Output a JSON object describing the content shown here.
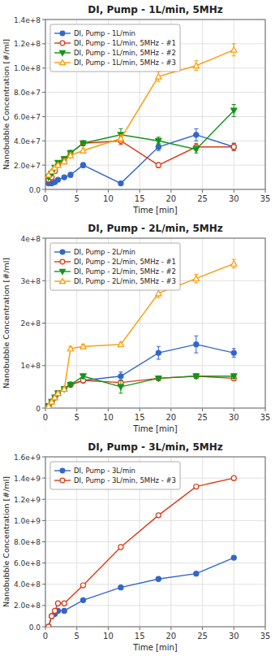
{
  "chart_data": [
    {
      "type": "line",
      "title": "DI, Pump - 1L/min, 5MHz",
      "xlabel": "Time [min]",
      "ylabel": "Nanobubble Concentration [#/ml]",
      "xlim": [
        0,
        35
      ],
      "xticks": [
        0,
        5,
        10,
        15,
        20,
        25,
        30,
        35
      ],
      "ylim": [
        0,
        140000000
      ],
      "yticks": [
        {
          "value": 0,
          "label": "0.0"
        },
        {
          "value": 20000000,
          "label": "2.0e+7"
        },
        {
          "value": 40000000,
          "label": "4.0e+7"
        },
        {
          "value": 60000000,
          "label": "6.0e+7"
        },
        {
          "value": 80000000,
          "label": "8.0e+7"
        },
        {
          "value": 100000000,
          "label": "1.0e+8"
        },
        {
          "value": 120000000,
          "label": "1.2e+8"
        },
        {
          "value": 140000000,
          "label": "1.4e+8"
        }
      ],
      "grid": true,
      "legend": "upper left",
      "series": [
        {
          "name": "DI, Pump - 1L/min",
          "marker": "circle",
          "x": [
            0.5,
            1,
            1.5,
            2,
            3,
            4,
            6,
            12,
            18,
            24,
            30
          ],
          "values": [
            5000000,
            5000000,
            6000000,
            8000000,
            10000000,
            12000000,
            20000000,
            5000000,
            35000000,
            45000000,
            35000000
          ],
          "errors": [
            1000000,
            1000000,
            1000000,
            1000000,
            1000000,
            2000000,
            2000000,
            1000000,
            3000000,
            5000000,
            3000000
          ]
        },
        {
          "name": "DI, Pump - 1L/min, 5MHz - #1",
          "marker": "circle-open",
          "x": [
            0.5,
            1,
            1.5,
            2,
            3,
            4,
            6,
            12,
            18,
            24,
            30
          ],
          "values": [
            8000000,
            10000000,
            15000000,
            20000000,
            25000000,
            30000000,
            38000000,
            40000000,
            20000000,
            35000000,
            35000000
          ],
          "errors": [
            1000000,
            1000000,
            1000000,
            1000000,
            2000000,
            2000000,
            2000000,
            3000000,
            2000000,
            3000000,
            3000000
          ]
        },
        {
          "name": "DI, Pump - 1L/min, 5MHz - #2",
          "marker": "triangle-down",
          "x": [
            0.5,
            1,
            1.5,
            2,
            3,
            4,
            6,
            12,
            18,
            24,
            30
          ],
          "values": [
            10000000,
            13000000,
            18000000,
            22000000,
            25000000,
            30000000,
            38000000,
            45000000,
            40000000,
            33000000,
            65000000
          ],
          "errors": [
            1000000,
            1000000,
            1000000,
            1000000,
            2000000,
            2000000,
            2000000,
            5000000,
            3000000,
            3000000,
            5000000
          ]
        },
        {
          "name": "DI, Pump - 1L/min, 5MHz - #3",
          "marker": "triangle-up-open",
          "x": [
            0.5,
            1,
            1.5,
            2,
            3,
            4,
            6,
            12,
            18,
            24,
            30
          ],
          "values": [
            12000000,
            15000000,
            18000000,
            20000000,
            23000000,
            28000000,
            32000000,
            42000000,
            93000000,
            102000000,
            115000000
          ],
          "errors": [
            1000000,
            1000000,
            1000000,
            1000000,
            2000000,
            2000000,
            2000000,
            3000000,
            4000000,
            4000000,
            5000000
          ]
        }
      ]
    },
    {
      "type": "line",
      "title": "DI, Pump - 2L/min, 5MHz",
      "xlabel": "Time [min]",
      "ylabel": "Nanobubble Concentration [#/ml]",
      "xlim": [
        0,
        35
      ],
      "xticks": [
        0,
        5,
        10,
        15,
        20,
        25,
        30,
        35
      ],
      "ylim": [
        0,
        400000000
      ],
      "yticks": [
        0,
        {
          "value": 100000000,
          "label": "1e+8"
        },
        {
          "value": 200000000,
          "label": "2e+8"
        },
        {
          "value": 300000000,
          "label": "3e+8"
        },
        {
          "value": 400000000,
          "label": "4e+8"
        }
      ],
      "grid": true,
      "legend": "upper left",
      "series": [
        {
          "name": "DI, Pump - 2L/min",
          "marker": "circle",
          "x": [
            0.5,
            1,
            1.5,
            2,
            3,
            4,
            6,
            12,
            18,
            24,
            30
          ],
          "values": [
            5000000,
            15000000,
            25000000,
            35000000,
            45000000,
            55000000,
            65000000,
            75000000,
            130000000,
            150000000,
            130000000
          ],
          "errors": [
            1000000,
            2000000,
            2000000,
            3000000,
            3000000,
            4000000,
            5000000,
            10000000,
            15000000,
            20000000,
            10000000
          ]
        },
        {
          "name": "DI, Pump - 2L/min, 5MHz - #1",
          "marker": "circle-open",
          "x": [
            0.5,
            1,
            1.5,
            2,
            3,
            4,
            6,
            12,
            18,
            24,
            30
          ],
          "values": [
            5000000,
            15000000,
            25000000,
            35000000,
            45000000,
            55000000,
            65000000,
            60000000,
            70000000,
            75000000,
            70000000
          ],
          "errors": [
            1000000,
            2000000,
            2000000,
            3000000,
            3000000,
            4000000,
            5000000,
            5000000,
            5000000,
            5000000,
            5000000
          ]
        },
        {
          "name": "DI, Pump - 2L/min, 5MHz - #2",
          "marker": "triangle-down",
          "x": [
            0.5,
            1,
            1.5,
            2,
            3,
            4,
            6,
            12,
            18,
            24,
            30
          ],
          "values": [
            5000000,
            15000000,
            25000000,
            35000000,
            45000000,
            55000000,
            75000000,
            50000000,
            70000000,
            75000000,
            75000000
          ],
          "errors": [
            1000000,
            2000000,
            2000000,
            3000000,
            3000000,
            4000000,
            5000000,
            15000000,
            5000000,
            5000000,
            5000000
          ]
        },
        {
          "name": "DI, Pump - 2L/min, 5MHz - #3",
          "marker": "triangle-up-open",
          "x": [
            0.5,
            1,
            1.5,
            2,
            3,
            4,
            6,
            12,
            18,
            24,
            30
          ],
          "values": [
            5000000,
            15000000,
            25000000,
            35000000,
            45000000,
            140000000,
            145000000,
            150000000,
            270000000,
            305000000,
            340000000
          ],
          "errors": [
            1000000,
            2000000,
            2000000,
            3000000,
            3000000,
            5000000,
            5000000,
            5000000,
            10000000,
            10000000,
            10000000
          ]
        }
      ]
    },
    {
      "type": "line",
      "title": "DI, Pump - 3L/min, 5MHz",
      "xlabel": "Time [min]",
      "ylabel": "Nanobubble Concentration [#/ml]",
      "xlim": [
        0,
        35
      ],
      "xticks": [
        0,
        5,
        10,
        15,
        20,
        25,
        30,
        35
      ],
      "ylim": [
        0,
        1600000000
      ],
      "yticks": [
        {
          "value": 0,
          "label": "0.0"
        },
        {
          "value": 200000000,
          "label": "2.0e+8"
        },
        {
          "value": 400000000,
          "label": "4.0e+8"
        },
        {
          "value": 600000000,
          "label": "6.0e+8"
        },
        {
          "value": 800000000,
          "label": "8.0e+8"
        },
        {
          "value": 1000000000,
          "label": "1.0e+9"
        },
        {
          "value": 1200000000,
          "label": "1.2e+9"
        },
        {
          "value": 1400000000,
          "label": "1.4e+9"
        },
        {
          "value": 1600000000,
          "label": "1.6e+9"
        }
      ],
      "grid": true,
      "legend": "upper left",
      "series": [
        {
          "name": "DI, Pump - 3L/min",
          "marker": "circle",
          "x": [
            0.5,
            1,
            1.5,
            2,
            3,
            6,
            12,
            18,
            24,
            30
          ],
          "values": [
            0,
            100000000,
            120000000,
            150000000,
            150000000,
            250000000,
            370000000,
            450000000,
            500000000,
            650000000
          ],
          "errors": [
            0,
            5000000,
            5000000,
            5000000,
            10000000,
            10000000,
            10000000,
            10000000,
            10000000,
            10000000
          ]
        },
        {
          "name": "DI, Pump - 3L/min, 5MHz - #3",
          "marker": "circle-open",
          "x": [
            0.5,
            1,
            1.5,
            2,
            3,
            6,
            12,
            18,
            24,
            30
          ],
          "values": [
            0,
            100000000,
            150000000,
            220000000,
            220000000,
            390000000,
            750000000,
            1050000000,
            1320000000,
            1400000000
          ],
          "errors": [
            0,
            5000000,
            5000000,
            10000000,
            10000000,
            10000000,
            10000000,
            10000000,
            10000000,
            10000000
          ]
        }
      ]
    }
  ]
}
